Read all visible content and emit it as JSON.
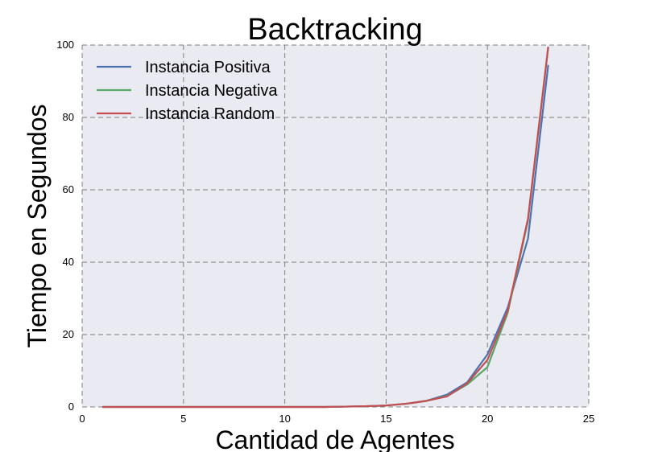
{
  "chart_data": {
    "type": "line",
    "title": "Backtracking",
    "xlabel": "Cantidad de Agentes",
    "ylabel": "Tiempo en Segundos",
    "xlim": [
      0,
      25
    ],
    "ylim": [
      0,
      100
    ],
    "xticks": [
      "0",
      "5",
      "10",
      "15",
      "20",
      "25"
    ],
    "yticks": [
      "0",
      "20",
      "40",
      "60",
      "80",
      "100"
    ],
    "grid": true,
    "legend_position": "top-left",
    "x": [
      1,
      2,
      3,
      4,
      5,
      6,
      7,
      8,
      9,
      10,
      11,
      12,
      13,
      14,
      15,
      16,
      17,
      18,
      19,
      20,
      21,
      22,
      23
    ],
    "series": [
      {
        "name": "Instancia Positiva",
        "color": "#4c72b0",
        "values": [
          0,
          0,
          0,
          0,
          0,
          0,
          0,
          0,
          0,
          0,
          0,
          0,
          0.1,
          0.2,
          0.4,
          0.9,
          1.7,
          3.4,
          6.8,
          14.5,
          27.5,
          46.5,
          94.5
        ]
      },
      {
        "name": "Instancia Negativa",
        "color": "#55a868",
        "values": [
          0,
          0,
          0,
          0,
          0,
          0,
          0,
          0,
          0,
          0,
          0,
          0,
          0.1,
          0.2,
          0.4,
          0.9,
          1.7,
          3.0,
          6.2,
          11.0,
          26.0,
          51.5,
          99.5
        ]
      },
      {
        "name": "Instancia Random",
        "color": "#c44e52",
        "values": [
          0,
          0,
          0,
          0,
          0,
          0,
          0,
          0,
          0,
          0,
          0,
          0,
          0.1,
          0.2,
          0.4,
          0.9,
          1.7,
          2.9,
          6.5,
          13.0,
          26.5,
          52.0,
          99.5
        ]
      }
    ]
  }
}
